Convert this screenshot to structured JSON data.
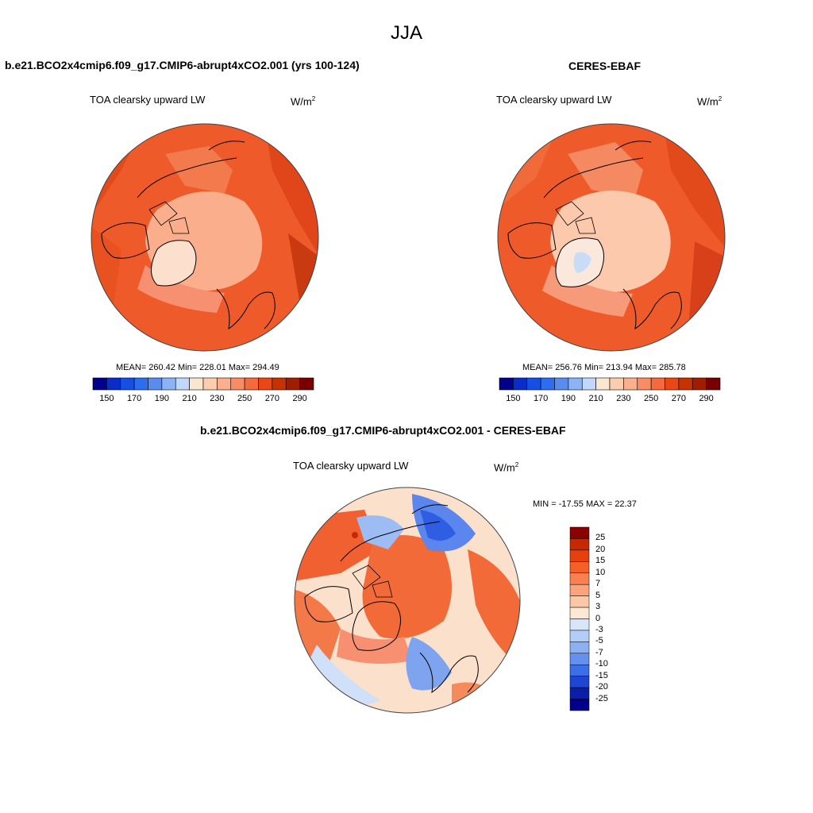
{
  "figure": {
    "title": "JJA"
  },
  "panels": {
    "model": {
      "title": "b.e21.BCO2x4cmip6.f09_g17.CMIP6-abrupt4xCO2.001 (yrs 100-124)",
      "variable": "TOA clearsky upward LW",
      "units": "W/m",
      "units_exp": "2",
      "stats": "MEAN= 260.42  Min= 228.01  Max= 294.49"
    },
    "obs": {
      "title": "CERES-EBAF",
      "variable": "TOA clearsky upward LW",
      "units": "W/m",
      "units_exp": "2",
      "stats": "MEAN= 256.76  Min= 213.94  Max= 285.78"
    },
    "diff": {
      "title": "b.e21.BCO2x4cmip6.f09_g17.CMIP6-abrupt4xCO2.001 - CERES-EBAF",
      "variable": "TOA clearsky upward LW",
      "units": "W/m",
      "units_exp": "2",
      "stats": "MIN = -17.55 MAX =  22.37"
    }
  },
  "colorbar_abs": {
    "tick_labels": [
      "150",
      "170",
      "190",
      "210",
      "230",
      "250",
      "270",
      "290"
    ],
    "colors": [
      "#00008c",
      "#0a2dc8",
      "#1450e6",
      "#2d6ef0",
      "#5a8cf0",
      "#8cb4f5",
      "#c3d7fa",
      "#fbe6d2",
      "#fcccb0",
      "#fbaf8c",
      "#f98c64",
      "#f5693c",
      "#eb4614",
      "#c83200",
      "#a01e00",
      "#780000"
    ]
  },
  "colorbar_diff": {
    "tick_labels": [
      "25",
      "20",
      "15",
      "10",
      "7",
      "5",
      "3",
      "0",
      "-3",
      "-5",
      "-7",
      "-10",
      "-15",
      "-20",
      "-25"
    ],
    "colors": [
      "#8b0000",
      "#c82800",
      "#e64010",
      "#f55f28",
      "#f98050",
      "#fba37a",
      "#fcc7a6",
      "#fde8d6",
      "#d9e6fa",
      "#b4cdf8",
      "#8cb0f2",
      "#6490ee",
      "#3c6ee8",
      "#1e46d2",
      "#0a1eaa",
      "#00008c"
    ]
  },
  "map_colors": {
    "model_base": "#ef5a2a",
    "obs_base": "#f0602f",
    "diff_base": "#fbe0cc",
    "coast": "#000000"
  }
}
